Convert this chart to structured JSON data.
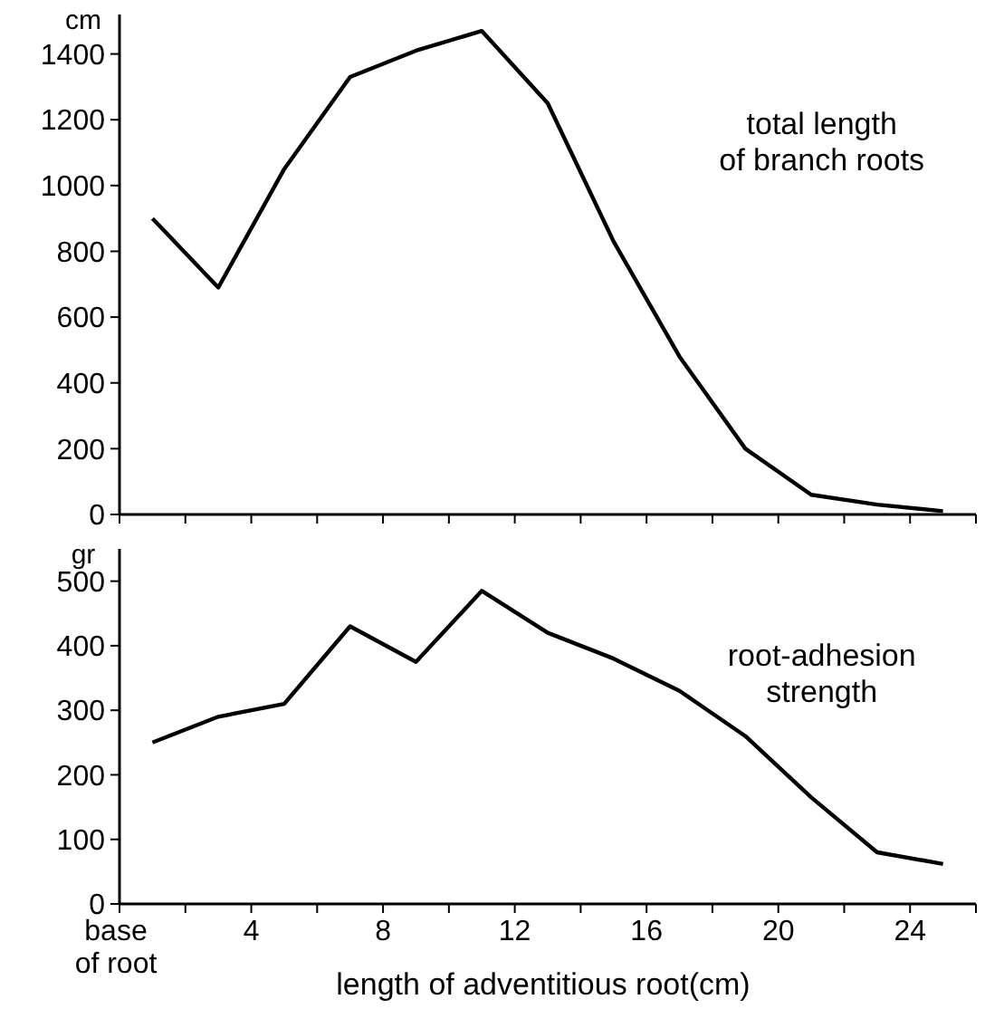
{
  "chart_data": [
    {
      "type": "line",
      "ylabel": "cm",
      "annotations": [
        "total length of branch roots"
      ],
      "x": [
        1,
        3,
        5,
        7,
        9,
        11,
        13,
        15,
        17,
        19,
        21,
        23,
        25
      ],
      "series": [
        {
          "color": "#000000",
          "values": [
            900,
            690,
            1050,
            1330,
            1410,
            1470,
            1250,
            830,
            480,
            200,
            60,
            30,
            10
          ]
        }
      ],
      "xlim": [
        0,
        26
      ],
      "xticks": [
        {
          "value": 0,
          "label": null
        },
        {
          "value": 2,
          "label": null
        },
        {
          "value": 4,
          "label": null
        },
        {
          "value": 6,
          "label": null
        },
        {
          "value": 8,
          "label": null
        },
        {
          "value": 10,
          "label": null
        },
        {
          "value": 12,
          "label": null
        },
        {
          "value": 14,
          "label": null
        },
        {
          "value": 16,
          "label": null
        },
        {
          "value": 18,
          "label": null
        },
        {
          "value": 20,
          "label": null
        },
        {
          "value": 22,
          "label": null
        },
        {
          "value": 24,
          "label": null
        },
        {
          "value": 26,
          "label": null
        }
      ],
      "ylim": [
        0,
        1520
      ],
      "yticks": [
        0,
        200,
        400,
        600,
        800,
        1000,
        1200,
        1400
      ],
      "tick_labels": "y",
      "grid": false,
      "marker": "none",
      "line_style": "solid"
    },
    {
      "type": "line",
      "ylabel": "gr",
      "xlabel": "length of adventitious root(cm)",
      "annotations": [
        "root-adhesion strength"
      ],
      "x": [
        1,
        3,
        5,
        7,
        9,
        11,
        13,
        15,
        17,
        19,
        21,
        23,
        25
      ],
      "series": [
        {
          "color": "#000000",
          "values": [
            250,
            290,
            310,
            430,
            375,
            485,
            420,
            380,
            330,
            260,
            165,
            80,
            62
          ]
        }
      ],
      "xlim": [
        0,
        26
      ],
      "xticks": [
        {
          "value": 0,
          "label": "base of root"
        },
        {
          "value": 2,
          "label": null
        },
        4,
        {
          "value": 6,
          "label": null
        },
        8,
        {
          "value": 10,
          "label": null
        },
        12,
        {
          "value": 14,
          "label": null
        },
        16,
        {
          "value": 18,
          "label": null
        },
        20,
        {
          "value": 22,
          "label": null
        },
        24,
        {
          "value": 26,
          "label": null
        }
      ],
      "ylim": [
        0,
        550
      ],
      "yticks": [
        0,
        100,
        200,
        300,
        400,
        500
      ],
      "grid": false,
      "marker": "none",
      "line_style": "solid"
    }
  ]
}
